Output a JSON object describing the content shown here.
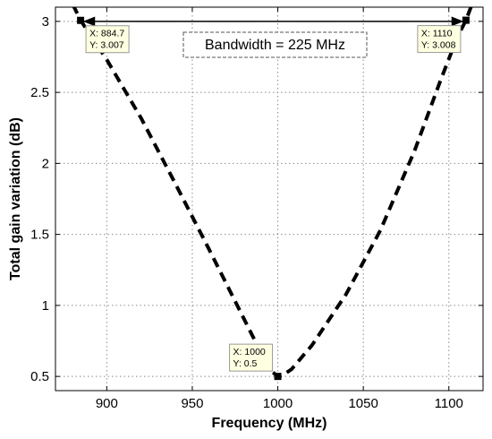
{
  "chart_data": {
    "type": "line",
    "title": "",
    "xlabel": "Frequency (MHz)",
    "ylabel": "Total gain variation (dB)",
    "xlim": [
      870,
      1120
    ],
    "ylim": [
      0.4,
      3.1
    ],
    "xticks": [
      900,
      950,
      1000,
      1050,
      1100
    ],
    "yticks": [
      0.5,
      1,
      1.5,
      2,
      2.5,
      3
    ],
    "xtick_labels": [
      "900",
      "950",
      "1000",
      "1050",
      "1100"
    ],
    "ytick_labels": [
      "0.5",
      "1",
      "1.5",
      "2",
      "2.5",
      "3"
    ],
    "grid": true,
    "line_style": "dashed",
    "line_color": "#000000",
    "series": [
      {
        "x": [
          876,
          884.7,
          900,
          920,
          940,
          960,
          975,
          985,
          992,
          997,
          1000,
          1003,
          1008,
          1020,
          1040,
          1060,
          1080,
          1095,
          1105,
          1110,
          1116
        ],
        "y": [
          3.22,
          3.007,
          2.73,
          2.32,
          1.86,
          1.39,
          1.03,
          0.79,
          0.63,
          0.53,
          0.5,
          0.51,
          0.55,
          0.72,
          1.08,
          1.53,
          2.09,
          2.58,
          2.89,
          3.008,
          3.2
        ]
      }
    ],
    "annotations": {
      "bandwidth_label": "Bandwidth = 225 MHz",
      "bandwidth_arrow": {
        "x_start": 884.7,
        "x_end": 1110,
        "y": 3.0
      }
    },
    "datatips": [
      {
        "x": 884.7,
        "y": 3.007,
        "line1": "X: 884.7",
        "line2": "Y: 3.007",
        "side": "lower-right"
      },
      {
        "x": 1000,
        "y": 0.5,
        "line1": "X: 1000",
        "line2": "Y: 0.5",
        "side": "upper-left"
      },
      {
        "x": 1110,
        "y": 3.008,
        "line1": "X: 1110",
        "line2": "Y: 3.008",
        "side": "lower-left"
      }
    ]
  }
}
